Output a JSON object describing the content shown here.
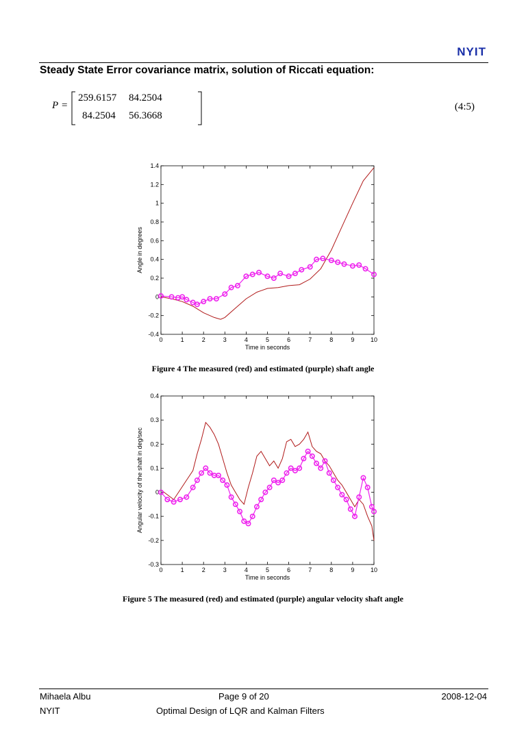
{
  "header": {
    "logo": "NYIT"
  },
  "section": {
    "heading": "Steady State Error covariance matrix, solution of Riccati equation:"
  },
  "equation": {
    "symbol": "P",
    "equals": "=",
    "matrix": [
      [
        "259.6157",
        "84.2504"
      ],
      [
        "84.2504",
        "56.3668"
      ]
    ],
    "number": "(4:5)"
  },
  "figures": [
    {
      "caption": "Figure 4  The measured (red) and estimated (purple) shaft angle"
    },
    {
      "caption": "Figure 5  The measured (red) and estimated (purple) angular velocity shaft angle"
    }
  ],
  "chart_data": [
    {
      "type": "line",
      "xlabel": "Time in seconds",
      "ylabel": "Angle in degrees",
      "xlim": [
        0,
        10
      ],
      "ylim": [
        -0.4,
        1.4
      ],
      "xticks": [
        "0",
        "1",
        "2",
        "3",
        "4",
        "5",
        "6",
        "7",
        "8",
        "9",
        "10"
      ],
      "yticks": [
        "-0.4",
        "-0.2",
        "0",
        "0.2",
        "0.4",
        "0.6",
        "0.8",
        "1",
        "1.2",
        "1.4"
      ],
      "grid": false,
      "series": [
        {
          "color": "#b01818",
          "marker": "none",
          "x": [
            0,
            0.5,
            1,
            1.5,
            2,
            2.5,
            2.8,
            3,
            3.5,
            4,
            4.5,
            5,
            5.5,
            6,
            6.5,
            7,
            7.5,
            8,
            8.5,
            9,
            9.5,
            10
          ],
          "y": [
            0,
            -0.02,
            -0.05,
            -0.1,
            -0.17,
            -0.22,
            -0.24,
            -0.22,
            -0.12,
            -0.02,
            0.05,
            0.09,
            0.1,
            0.12,
            0.13,
            0.19,
            0.3,
            0.5,
            0.75,
            1.0,
            1.24,
            1.38
          ]
        },
        {
          "color": "#ee22ee",
          "marker": "circle",
          "x": [
            0,
            0.5,
            0.8,
            1,
            1.2,
            1.5,
            1.7,
            2,
            2.3,
            2.6,
            3,
            3.3,
            3.6,
            4,
            4.3,
            4.6,
            5,
            5.3,
            5.6,
            6,
            6.3,
            6.6,
            7,
            7.3,
            7.6,
            8,
            8.3,
            8.6,
            9,
            9.3,
            9.6,
            10
          ],
          "y": [
            0.01,
            0.0,
            -0.01,
            0.0,
            -0.03,
            -0.06,
            -0.08,
            -0.05,
            -0.02,
            -0.02,
            0.03,
            0.1,
            0.12,
            0.22,
            0.24,
            0.26,
            0.22,
            0.2,
            0.25,
            0.22,
            0.25,
            0.29,
            0.32,
            0.4,
            0.41,
            0.39,
            0.37,
            0.35,
            0.33,
            0.34,
            0.3,
            0.24
          ]
        }
      ]
    },
    {
      "type": "line",
      "xlabel": "Time in seconds",
      "ylabel": "Angular velocity of the shaft in deg/sec",
      "xlim": [
        0,
        10
      ],
      "ylim": [
        -0.3,
        0.4
      ],
      "xticks": [
        "0",
        "1",
        "2",
        "3",
        "4",
        "5",
        "6",
        "7",
        "8",
        "9",
        "10"
      ],
      "yticks": [
        "-0.3",
        "-0.2",
        "-0.1",
        "0",
        "0.1",
        "0.2",
        "0.3",
        "0.4"
      ],
      "grid": false,
      "series": [
        {
          "color": "#b01818",
          "marker": "none",
          "x": [
            0,
            0.3,
            0.6,
            0.9,
            1.2,
            1.5,
            1.7,
            1.9,
            2.1,
            2.3,
            2.5,
            2.7,
            2.9,
            3.1,
            3.3,
            3.5,
            3.7,
            3.9,
            4.1,
            4.3,
            4.5,
            4.7,
            4.9,
            5.1,
            5.3,
            5.5,
            5.7,
            5.9,
            6.1,
            6.3,
            6.5,
            6.7,
            6.9,
            7.1,
            7.3,
            7.5,
            7.7,
            7.9,
            8.1,
            8.3,
            8.5,
            8.7,
            8.9,
            9.1,
            9.3,
            9.5,
            9.7,
            9.9,
            10
          ],
          "y": [
            0.01,
            -0.01,
            -0.03,
            0.01,
            0.05,
            0.09,
            0.16,
            0.22,
            0.29,
            0.27,
            0.24,
            0.2,
            0.14,
            0.08,
            0.03,
            0.0,
            -0.03,
            -0.05,
            0.02,
            0.08,
            0.15,
            0.17,
            0.14,
            0.11,
            0.13,
            0.1,
            0.14,
            0.21,
            0.22,
            0.19,
            0.2,
            0.22,
            0.25,
            0.19,
            0.17,
            0.16,
            0.13,
            0.11,
            0.08,
            0.05,
            0.03,
            0.0,
            -0.03,
            -0.06,
            -0.03,
            -0.05,
            -0.1,
            -0.14,
            -0.2
          ]
        },
        {
          "color": "#ee22ee",
          "marker": "circle",
          "x": [
            0,
            0.3,
            0.6,
            0.9,
            1.2,
            1.5,
            1.7,
            1.9,
            2.1,
            2.3,
            2.5,
            2.7,
            2.9,
            3.1,
            3.3,
            3.5,
            3.7,
            3.9,
            4.1,
            4.3,
            4.5,
            4.7,
            4.9,
            5.1,
            5.3,
            5.5,
            5.7,
            5.9,
            6.1,
            6.3,
            6.5,
            6.7,
            6.9,
            7.1,
            7.3,
            7.5,
            7.7,
            7.9,
            8.1,
            8.3,
            8.5,
            8.7,
            8.9,
            9.1,
            9.3,
            9.5,
            9.7,
            9.9,
            10
          ],
          "y": [
            0,
            -0.03,
            -0.04,
            -0.03,
            -0.02,
            0.02,
            0.05,
            0.08,
            0.1,
            0.08,
            0.07,
            0.07,
            0.05,
            0.03,
            -0.02,
            -0.05,
            -0.08,
            -0.12,
            -0.13,
            -0.1,
            -0.06,
            -0.03,
            0.0,
            0.02,
            0.05,
            0.04,
            0.05,
            0.08,
            0.1,
            0.09,
            0.1,
            0.14,
            0.17,
            0.15,
            0.12,
            0.1,
            0.13,
            0.08,
            0.05,
            0.02,
            -0.01,
            -0.03,
            -0.07,
            -0.1,
            -0.02,
            0.06,
            0.02,
            -0.06,
            -0.08
          ]
        }
      ]
    }
  ],
  "footer": {
    "author": "Mihaela Albu",
    "page": "Page 9 of 20",
    "date": "2008-12-04",
    "org": "NYIT",
    "title": "Optimal Design of LQR and Kalman Filters"
  }
}
